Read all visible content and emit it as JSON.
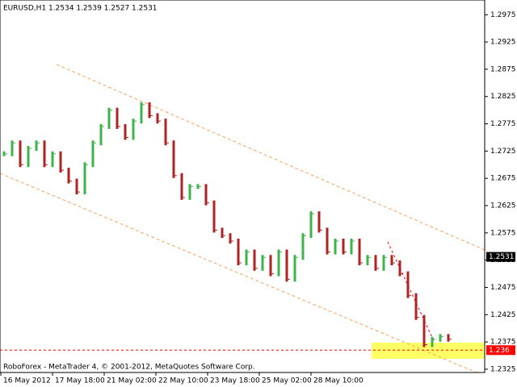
{
  "chart_data": {
    "type": "ohlc",
    "title": "EURUSD,H1  1.2534 1.2539 1.2527 1.2531",
    "footer": "RoboForex - MetaTrader 4, © 2001-2012, MetaQuotes Software Corp.",
    "x_labels": [
      "16 May 2012",
      "17 May 18:00",
      "21 May 02:00",
      "22 May 10:00",
      "23 May 18:00",
      "25 May 02:00",
      "28 May 10:00"
    ],
    "series": [
      {
        "name": "EURUSD",
        "color": "#3cb44b",
        "down_color": "#b22222",
        "values": [
          1.272,
          1.274,
          1.27,
          1.273,
          1.274,
          1.27,
          1.272,
          1.269,
          1.267,
          1.265,
          1.27,
          1.274,
          1.277,
          1.28,
          1.277,
          1.275,
          1.278,
          1.281,
          1.279,
          1.278,
          1.274,
          1.268,
          1.264,
          1.266,
          1.266,
          1.263,
          1.258,
          1.257,
          1.256,
          1.252,
          1.254,
          1.251,
          1.253,
          1.25,
          1.254,
          1.249,
          1.253,
          1.257,
          1.261,
          1.258,
          1.254,
          1.256,
          1.254,
          1.256,
          1.252,
          1.253,
          1.251,
          1.253,
          1.252,
          1.25,
          1.246,
          1.242,
          1.237,
          1.238,
          1.2385,
          1.238
        ]
      }
    ],
    "current_price": 1.2531,
    "level": 1.236,
    "ylim": [
      1.2319,
      1.3002
    ],
    "yticks": [
      1.2975,
      1.2925,
      1.2875,
      1.2825,
      1.2775,
      1.2725,
      1.2675,
      1.2625,
      1.2575,
      1.2525,
      1.2475,
      1.2425,
      1.2375,
      1.2325
    ]
  }
}
